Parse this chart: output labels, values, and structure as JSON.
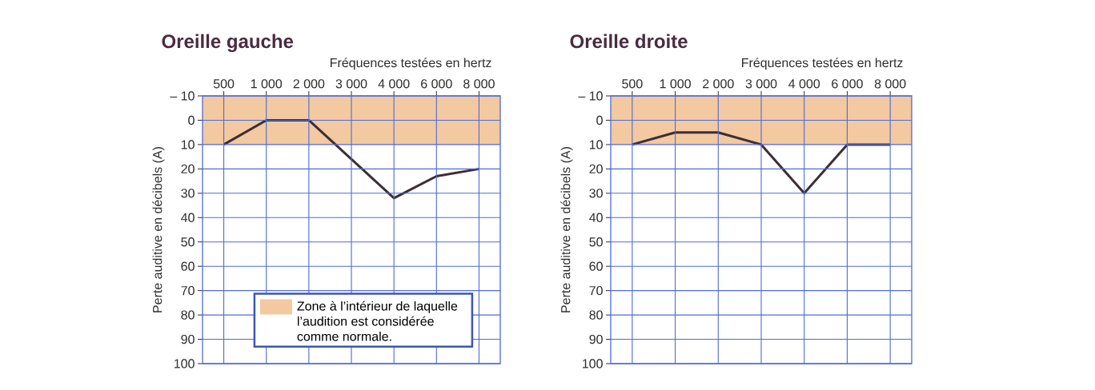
{
  "chart_data": [
    {
      "type": "line",
      "title": "Oreille gauche",
      "xlabel": "Fréquences testées en hertz",
      "ylabel": "Perte auditive en décibels (A)",
      "categories": [
        "500",
        "1 000",
        "2 000",
        "3 000",
        "4 000",
        "6 000",
        "8 000"
      ],
      "values": [
        10,
        0,
        0,
        16,
        32,
        23,
        20
      ],
      "color": "#3b2e36",
      "ylim": [
        100,
        -10
      ],
      "yticks": [
        {
          "value": -10,
          "label": "– 10"
        },
        0,
        10,
        20,
        30,
        40,
        50,
        60,
        70,
        80,
        90,
        100
      ],
      "grid": true,
      "legend": "bottom",
      "bands": [
        {
          "axis": "y",
          "from": -10,
          "to": 10,
          "label": "Zone à l’intérieur de laquelle l’audition est considérée comme normale.",
          "color": "#f2c9a0"
        }
      ]
    },
    {
      "type": "line",
      "title": "Oreille droite",
      "xlabel": "Fréquences testées en hertz",
      "ylabel": "Perte auditive en décibels (A)",
      "categories": [
        "500",
        "1 000",
        "2 000",
        "3 000",
        "4 000",
        "6 000",
        "8 000"
      ],
      "values": [
        10,
        5,
        5,
        10,
        30,
        10,
        10
      ],
      "color": "#3b2e36",
      "ylim": [
        100,
        -10
      ],
      "yticks": [
        {
          "value": -10,
          "label": "– 10"
        },
        0,
        10,
        20,
        30,
        40,
        50,
        60,
        70,
        80,
        90,
        100
      ],
      "grid": true,
      "bands": [
        {
          "axis": "y",
          "from": -10,
          "to": 10,
          "color": "#f2c9a0"
        }
      ]
    }
  ]
}
